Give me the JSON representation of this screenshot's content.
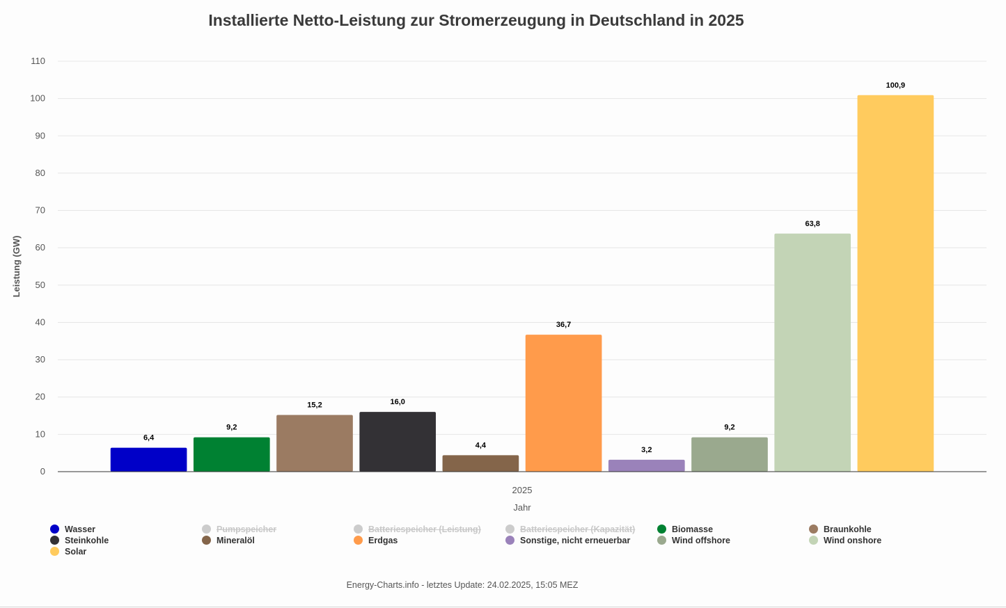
{
  "chart_data": {
    "type": "bar",
    "title": "Installierte Netto-Leistung zur Stromerzeugung in Deutschland in 2025",
    "xlabel": "Jahr",
    "ylabel": "Leistung (GW)",
    "categories": [
      "2025"
    ],
    "ylim": [
      0,
      110
    ],
    "yticks": [
      0,
      10,
      20,
      30,
      40,
      50,
      60,
      70,
      80,
      90,
      100,
      110
    ],
    "grid": true,
    "legend_position": "bottom",
    "series": [
      {
        "name": "Wasser",
        "values": [
          6.4
        ],
        "label": "6,4",
        "color": "#0000c8",
        "visible": true
      },
      {
        "name": "Pumpspeicher",
        "values": [
          null
        ],
        "color": "#cccccc",
        "visible": false
      },
      {
        "name": "Batteriespeicher (Leistung)",
        "values": [
          null
        ],
        "color": "#cccccc",
        "visible": false
      },
      {
        "name": "Batteriespeicher (Kapazität)",
        "values": [
          null
        ],
        "color": "#cccccc",
        "visible": false
      },
      {
        "name": "Biomasse",
        "values": [
          9.2
        ],
        "label": "9,2",
        "color": "#008132",
        "visible": true
      },
      {
        "name": "Braunkohle",
        "values": [
          15.2
        ],
        "label": "15,2",
        "color": "#9b7b62",
        "visible": true
      },
      {
        "name": "Steinkohle",
        "values": [
          16.0
        ],
        "label": "16,0",
        "color": "#333135",
        "visible": true
      },
      {
        "name": "Mineralöl",
        "values": [
          4.4
        ],
        "label": "4,4",
        "color": "#84654a",
        "visible": true
      },
      {
        "name": "Erdgas",
        "values": [
          36.7
        ],
        "label": "36,7",
        "color": "#ff9b4b",
        "visible": true
      },
      {
        "name": "Sonstige, nicht erneuerbar",
        "values": [
          3.2
        ],
        "label": "3,2",
        "color": "#9a82ba",
        "visible": true
      },
      {
        "name": "Wind offshore",
        "values": [
          9.2
        ],
        "label": "9,2",
        "color": "#9aa98e",
        "visible": true
      },
      {
        "name": "Wind onshore",
        "values": [
          63.8
        ],
        "label": "63,8",
        "color": "#c3d4b6",
        "visible": true
      },
      {
        "name": "Solar",
        "values": [
          100.9
        ],
        "label": "100,9",
        "color": "#ffcb5e",
        "visible": true
      }
    ]
  },
  "footer": "Energy-Charts.info - letztes Update: 24.02.2025, 15:05 MEZ"
}
